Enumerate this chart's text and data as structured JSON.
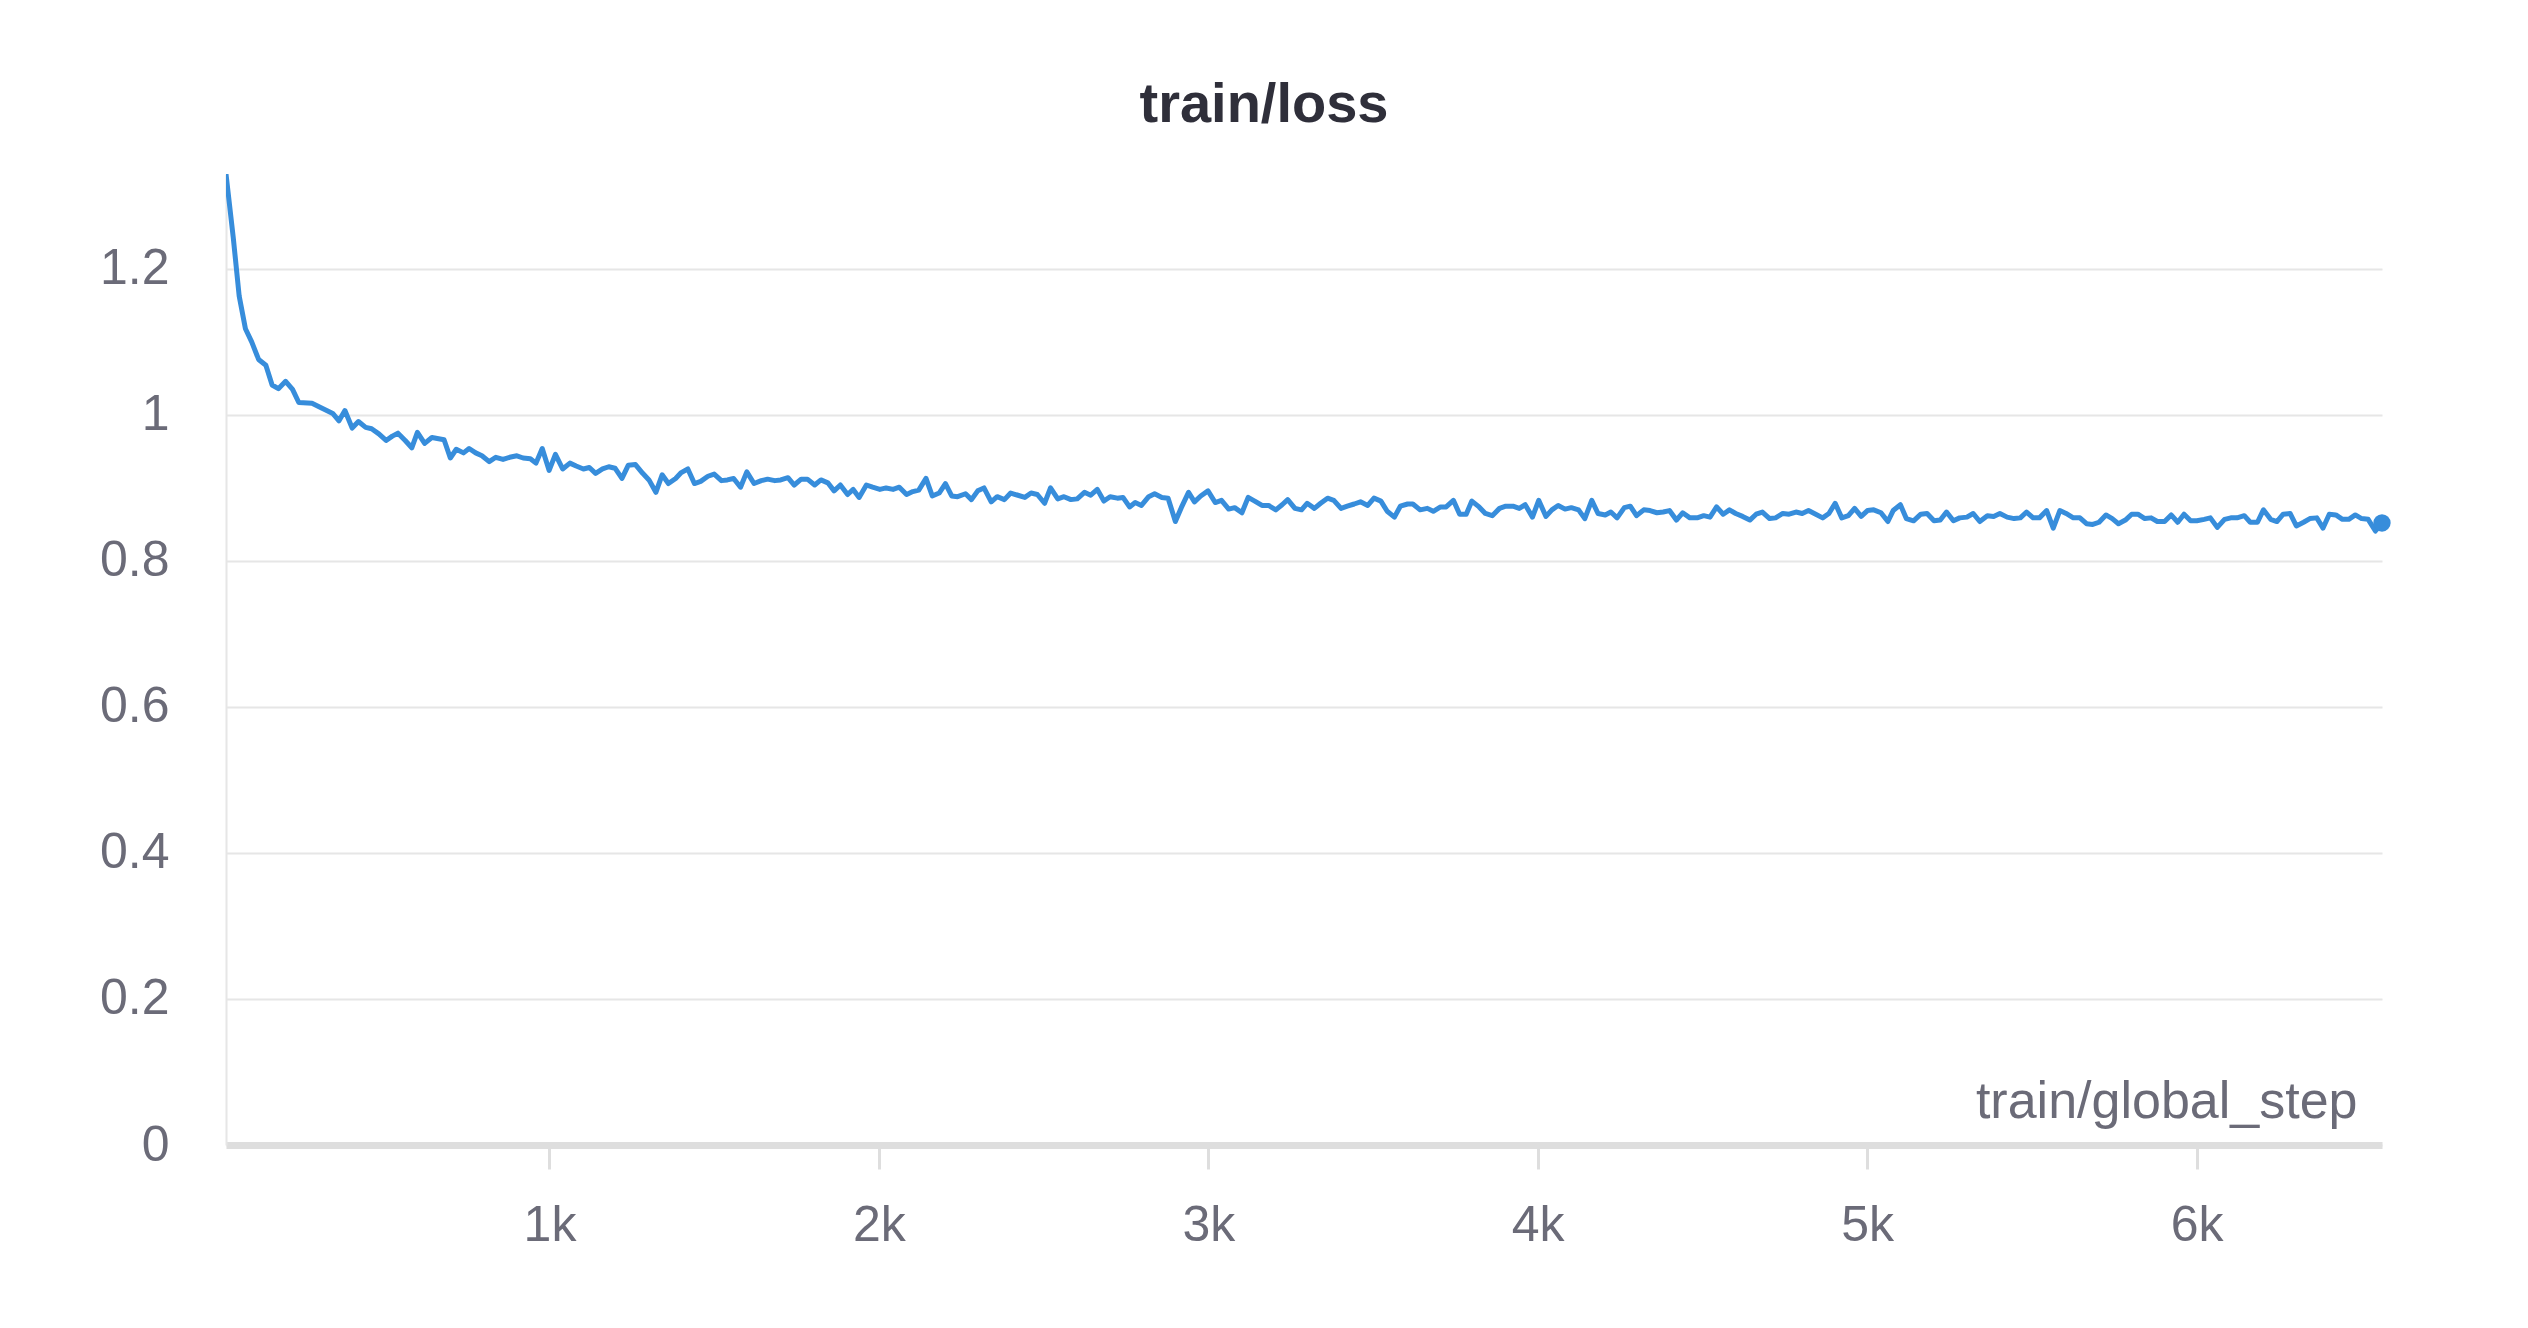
{
  "chart_data": {
    "type": "line",
    "title": "train/loss",
    "xlabel": "train/global_step",
    "x": [
      18,
      40,
      58,
      77,
      96,
      117,
      139,
      158,
      177,
      199,
      220,
      239,
      279,
      302,
      342,
      361,
      379,
      401,
      420,
      442,
      460,
      482,
      504,
      523,
      540,
      562,
      582,
      599,
      621,
      643,
      680,
      699,
      717,
      739,
      756,
      776,
      795,
      817,
      837,
      859,
      879,
      901,
      920,
      942,
      959,
      978,
      999,
      1018,
      1040,
      1062,
      1081,
      1103,
      1121,
      1140,
      1161,
      1180,
      1199,
      1220,
      1239,
      1261,
      1283,
      1302,
      1323,
      1342,
      1361,
      1383,
      1400,
      1420,
      1440,
      1459,
      1481,
      1500,
      1522,
      1540,
      1559,
      1580,
      1599,
      1621,
      1643,
      1662,
      1684,
      1702,
      1724,
      1743,
      1764,
      1783,
      1805,
      1824,
      1845,
      1864,
      1883,
      1905,
      1922,
      1940,
      1962,
      1981,
      2003,
      2022,
      2043,
      2062,
      2084,
      2103,
      2121,
      2143,
      2162,
      2183,
      2202,
      2221,
      2239,
      2263,
      2281,
      2300,
      2319,
      2341,
      2359,
      2381,
      2400,
      2422,
      2443,
      2462,
      2481,
      2503,
      2521,
      2543,
      2562,
      2583,
      2602,
      2624,
      2643,
      2663,
      2683,
      2702,
      2724,
      2741,
      2761,
      2778,
      2797,
      2819,
      2837,
      2859,
      2878,
      2900,
      2918,
      2940,
      2958,
      2977,
      2999,
      3021,
      3040,
      3062,
      3080,
      3102,
      3121,
      3141,
      3163,
      3183,
      3205,
      3224,
      3241,
      3263,
      3283,
      3300,
      3322,
      3341,
      3362,
      3381,
      3403,
      3422,
      3443,
      3462,
      3484,
      3503,
      3524,
      3543,
      3565,
      3583,
      3605,
      3621,
      3643,
      3665,
      3683,
      3705,
      3722,
      3744,
      3763,
      3783,
      3800,
      3822,
      3841,
      3862,
      3884,
      3903,
      3925,
      3944,
      3962,
      3984,
      4003,
      4025,
      4043,
      4062,
      4083,
      4102,
      4124,
      4143,
      4164,
      4183,
      4205,
      4222,
      4241,
      4263,
      4281,
      4300,
      4322,
      4341,
      4362,
      4381,
      4400,
      4421,
      4440,
      4462,
      4484,
      4504,
      4523,
      4543,
      4563,
      4582,
      4601,
      4622,
      4644,
      4663,
      4682,
      4704,
      4722,
      4744,
      4763,
      4784,
      4803,
      4822,
      4844,
      4865,
      4884,
      4903,
      4923,
      4943,
      4962,
      4982,
      5001,
      5020,
      5042,
      5063,
      5079,
      5101,
      5119,
      5141,
      5163,
      5182,
      5203,
      5222,
      5241,
      5262,
      5281,
      5303,
      5322,
      5342,
      5365,
      5384,
      5403,
      5425,
      5446,
      5465,
      5484,
      5504,
      5523,
      5545,
      5565,
      5585,
      5604,
      5626,
      5646,
      5666,
      5685,
      5704,
      5725,
      5744,
      5763,
      5784,
      5803,
      5822,
      5843,
      5862,
      5881,
      5903,
      5923,
      5943,
      5962,
      5982,
      6001,
      6023,
      6042,
      6063,
      6085,
      6104,
      6123,
      6145,
      6163,
      6185,
      6203,
      6225,
      6244,
      6263,
      6284,
      6303,
      6325,
      6344,
      6365,
      6384,
      6403,
      6423,
      6443,
      6462,
      6482,
      6501,
      6521,
      6543,
      6563
    ],
    "series": [
      {
        "color": "#378ddb",
        "values": [
          1.33,
          1.243,
          1.163,
          1.118,
          1.1,
          1.076,
          1.068,
          1.041,
          1.036,
          1.046,
          1.035,
          1.017,
          1.016,
          1.011,
          1.002,
          0.992,
          1.006,
          0.982,
          0.991,
          0.983,
          0.981,
          0.974,
          0.965,
          0.971,
          0.975,
          0.965,
          0.955,
          0.976,
          0.961,
          0.969,
          0.966,
          0.941,
          0.953,
          0.948,
          0.954,
          0.948,
          0.944,
          0.936,
          0.942,
          0.939,
          0.942,
          0.944,
          0.941,
          0.94,
          0.934,
          0.954,
          0.924,
          0.946,
          0.926,
          0.934,
          0.93,
          0.926,
          0.928,
          0.92,
          0.926,
          0.929,
          0.927,
          0.913,
          0.931,
          0.932,
          0.92,
          0.911,
          0.894,
          0.918,
          0.906,
          0.913,
          0.921,
          0.926,
          0.906,
          0.909,
          0.916,
          0.919,
          0.91,
          0.911,
          0.913,
          0.901,
          0.922,
          0.906,
          0.91,
          0.912,
          0.91,
          0.911,
          0.914,
          0.904,
          0.912,
          0.912,
          0.904,
          0.911,
          0.907,
          0.896,
          0.904,
          0.891,
          0.898,
          0.887,
          0.904,
          0.901,
          0.898,
          0.9,
          0.898,
          0.901,
          0.891,
          0.895,
          0.897,
          0.913,
          0.889,
          0.893,
          0.906,
          0.889,
          0.888,
          0.892,
          0.884,
          0.896,
          0.9,
          0.881,
          0.888,
          0.884,
          0.893,
          0.89,
          0.887,
          0.893,
          0.891,
          0.879,
          0.9,
          0.885,
          0.888,
          0.884,
          0.885,
          0.894,
          0.89,
          0.898,
          0.882,
          0.888,
          0.886,
          0.887,
          0.874,
          0.88,
          0.876,
          0.888,
          0.892,
          0.887,
          0.886,
          0.854,
          0.873,
          0.894,
          0.881,
          0.889,
          0.896,
          0.88,
          0.883,
          0.871,
          0.873,
          0.866,
          0.887,
          0.882,
          0.876,
          0.876,
          0.87,
          0.877,
          0.884,
          0.872,
          0.87,
          0.879,
          0.872,
          0.879,
          0.886,
          0.883,
          0.872,
          0.875,
          0.878,
          0.881,
          0.876,
          0.886,
          0.882,
          0.868,
          0.86,
          0.875,
          0.878,
          0.878,
          0.87,
          0.872,
          0.868,
          0.874,
          0.874,
          0.883,
          0.864,
          0.864,
          0.882,
          0.874,
          0.865,
          0.862,
          0.872,
          0.875,
          0.875,
          0.872,
          0.877,
          0.86,
          0.883,
          0.861,
          0.87,
          0.876,
          0.871,
          0.873,
          0.87,
          0.858,
          0.883,
          0.865,
          0.863,
          0.867,
          0.859,
          0.873,
          0.875,
          0.862,
          0.87,
          0.869,
          0.866,
          0.867,
          0.869,
          0.856,
          0.866,
          0.859,
          0.859,
          0.862,
          0.86,
          0.874,
          0.864,
          0.87,
          0.865,
          0.861,
          0.856,
          0.864,
          0.867,
          0.858,
          0.859,
          0.865,
          0.864,
          0.867,
          0.865,
          0.869,
          0.864,
          0.859,
          0.865,
          0.879,
          0.859,
          0.862,
          0.872,
          0.861,
          0.869,
          0.87,
          0.866,
          0.854,
          0.869,
          0.877,
          0.858,
          0.855,
          0.864,
          0.865,
          0.855,
          0.856,
          0.867,
          0.855,
          0.859,
          0.86,
          0.865,
          0.854,
          0.862,
          0.861,
          0.865,
          0.86,
          0.858,
          0.859,
          0.867,
          0.859,
          0.859,
          0.869,
          0.845,
          0.869,
          0.865,
          0.859,
          0.859,
          0.851,
          0.85,
          0.853,
          0.863,
          0.858,
          0.851,
          0.856,
          0.864,
          0.864,
          0.858,
          0.859,
          0.854,
          0.854,
          0.863,
          0.853,
          0.864,
          0.855,
          0.855,
          0.857,
          0.859,
          0.846,
          0.857,
          0.859,
          0.859,
          0.862,
          0.853,
          0.853,
          0.87,
          0.857,
          0.854,
          0.864,
          0.865,
          0.848,
          0.853,
          0.858,
          0.859,
          0.845,
          0.864,
          0.863,
          0.857,
          0.857,
          0.863,
          0.858,
          0.857,
          0.841,
          0.852
        ]
      }
    ],
    "xlim": [
      18,
      6563
    ],
    "ylim": [
      0,
      1.33
    ],
    "xticks": [
      {
        "value": 1000,
        "label": "1k"
      },
      {
        "value": 2000,
        "label": "2k"
      },
      {
        "value": 3000,
        "label": "3k"
      },
      {
        "value": 4000,
        "label": "4k"
      },
      {
        "value": 5000,
        "label": "5k"
      },
      {
        "value": 6000,
        "label": "6k"
      }
    ],
    "yticks": [
      0,
      0.2,
      0.4,
      0.6,
      0.8,
      1,
      1.2
    ],
    "grid": "y",
    "line_style": "solid"
  }
}
